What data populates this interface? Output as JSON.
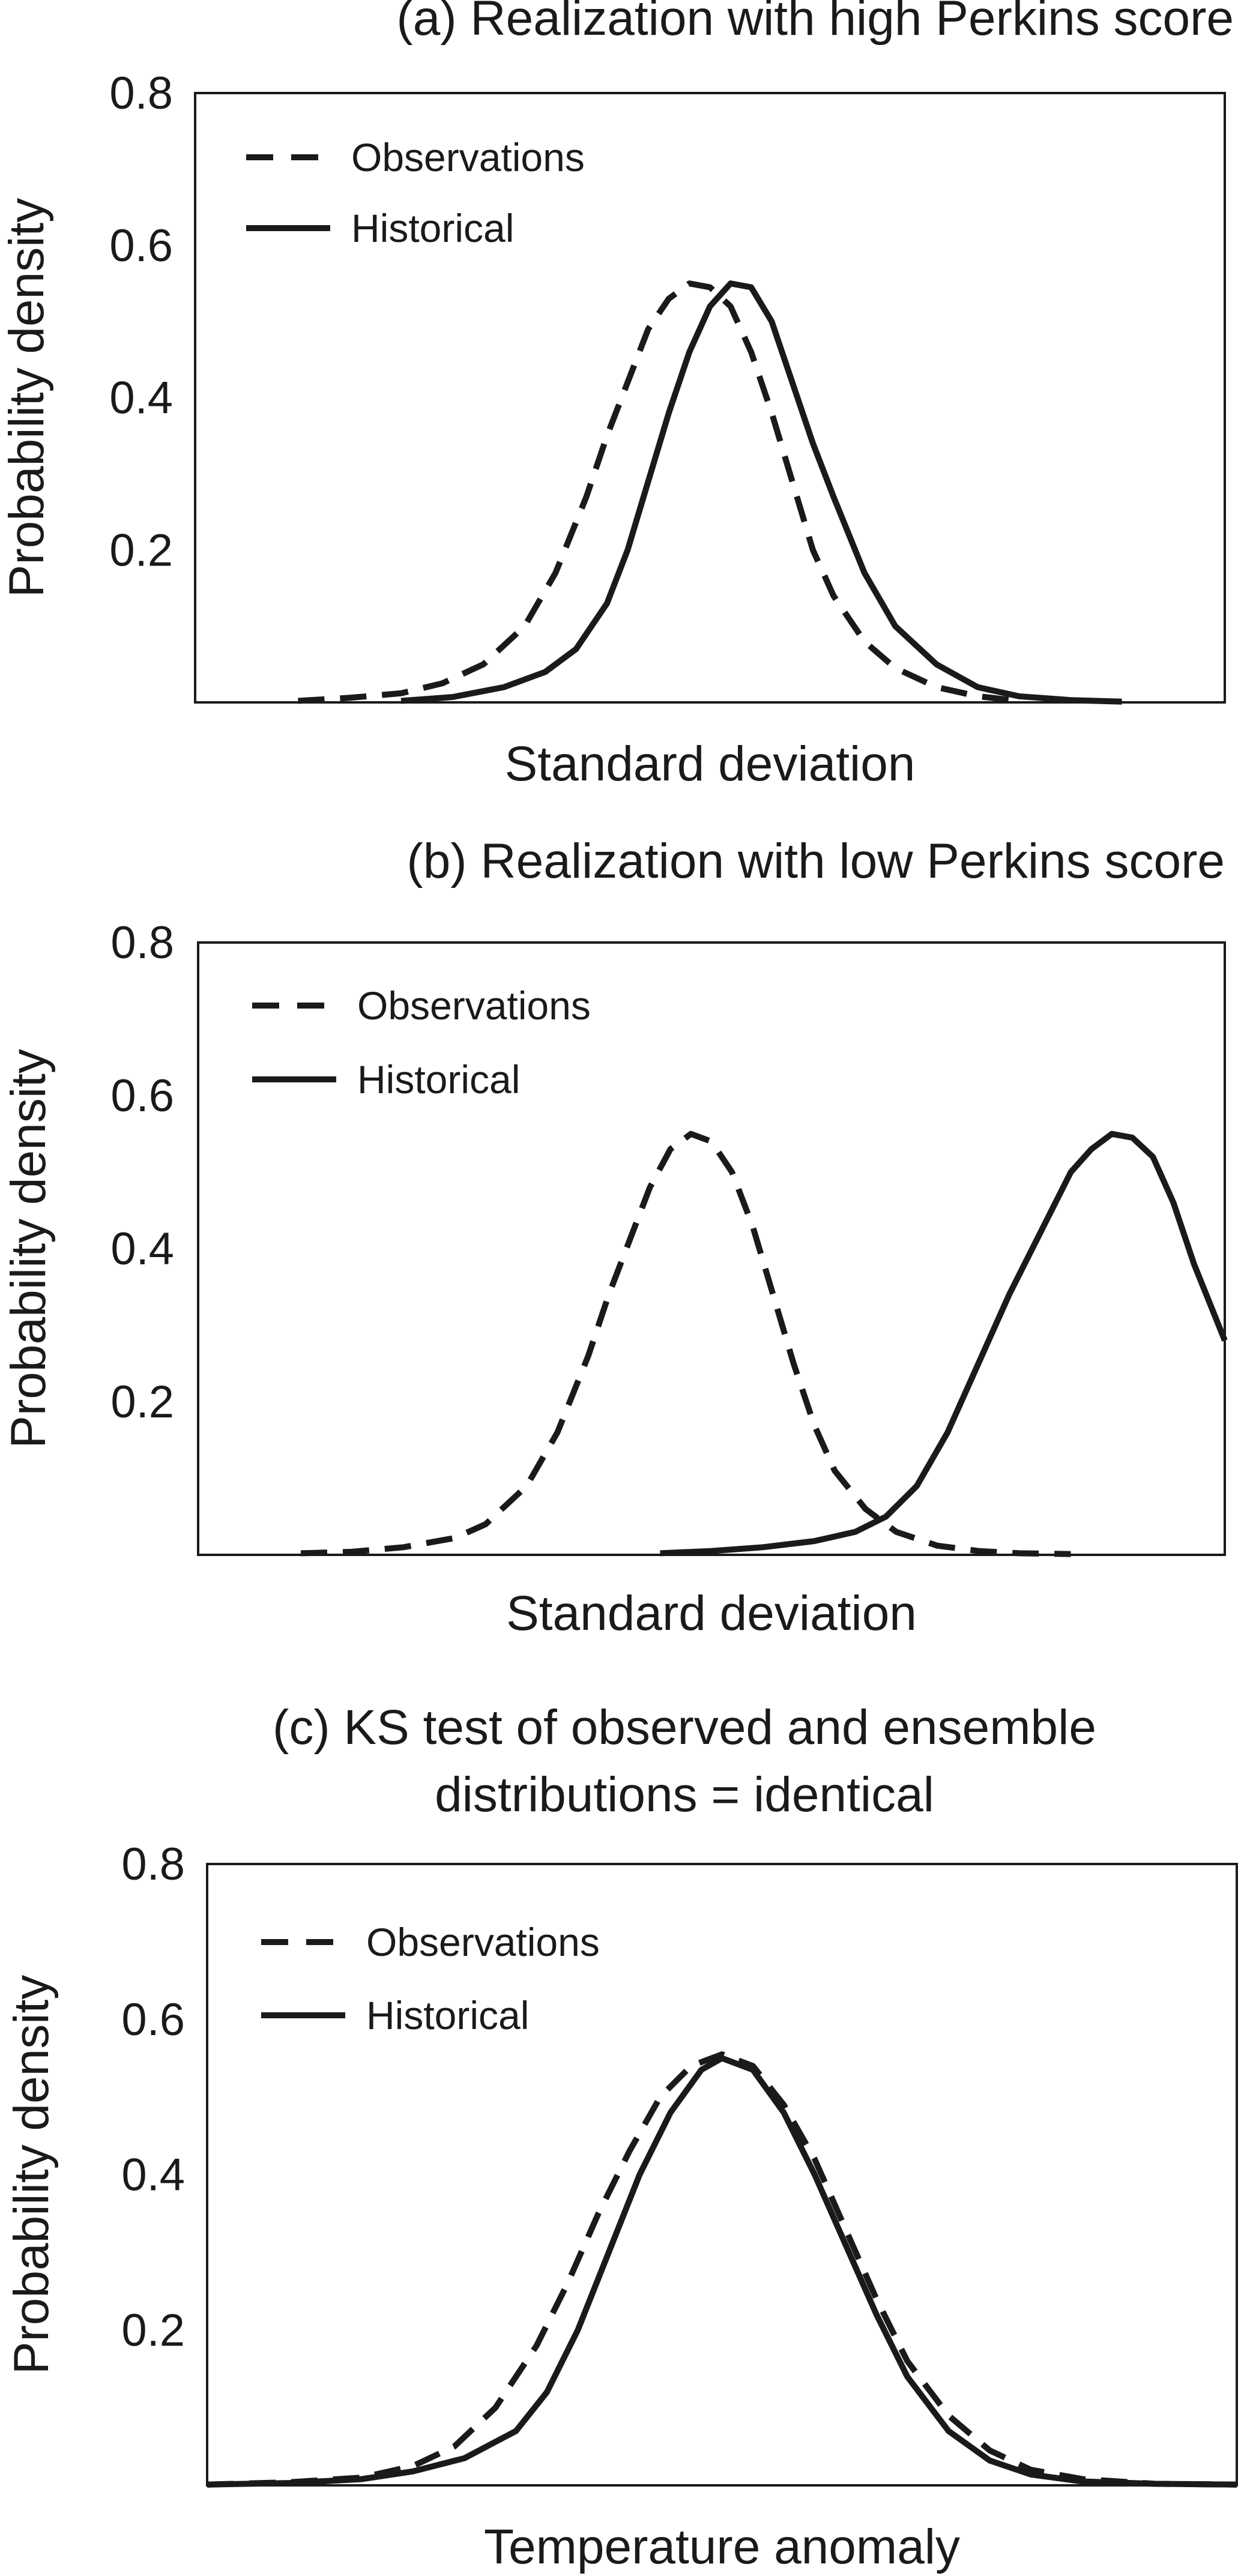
{
  "chart_data": [
    {
      "type": "line",
      "title": "(a) Realization with high Perkins score",
      "xlabel": "Standard deviation",
      "ylabel": "Probability density",
      "ylim": [
        0,
        0.8
      ],
      "xlim": [
        -5,
        5
      ],
      "yticks": [
        "0.2",
        "0.4",
        "0.6",
        "0.8"
      ],
      "grid": false,
      "legend_position": "top-left",
      "legend": [
        "Observations",
        "Historical"
      ],
      "series": [
        {
          "name": "Observations",
          "style": "dashed",
          "x": [
            -4,
            -3.5,
            -3,
            -2.6,
            -2.2,
            -1.8,
            -1.5,
            -1.2,
            -1,
            -0.8,
            -0.6,
            -0.4,
            -0.2,
            0,
            0.2,
            0.4,
            0.6,
            0.8,
            1,
            1.2,
            1.5,
            1.8,
            2.2,
            2.6,
            3
          ],
          "y": [
            0.002,
            0.006,
            0.012,
            0.025,
            0.05,
            0.1,
            0.17,
            0.27,
            0.35,
            0.42,
            0.49,
            0.53,
            0.55,
            0.545,
            0.52,
            0.46,
            0.38,
            0.29,
            0.2,
            0.14,
            0.08,
            0.045,
            0.02,
            0.008,
            0.002
          ]
        },
        {
          "name": "Historical",
          "style": "solid",
          "x": [
            -3,
            -2.5,
            -2,
            -1.6,
            -1.3,
            -1,
            -0.8,
            -0.6,
            -0.4,
            -0.2,
            0,
            0.2,
            0.4,
            0.6,
            0.8,
            1,
            1.2,
            1.5,
            1.8,
            2.2,
            2.6,
            3,
            3.5,
            4
          ],
          "y": [
            0.002,
            0.007,
            0.02,
            0.04,
            0.07,
            0.13,
            0.2,
            0.29,
            0.38,
            0.46,
            0.52,
            0.55,
            0.545,
            0.5,
            0.42,
            0.34,
            0.27,
            0.17,
            0.1,
            0.05,
            0.02,
            0.008,
            0.003,
            0.001
          ]
        }
      ]
    },
    {
      "type": "line",
      "title": "(b) Realization with low Perkins score",
      "xlabel": "Standard deviation",
      "ylabel": "Probability density",
      "ylim": [
        0,
        0.8
      ],
      "xlim": [
        -5,
        5
      ],
      "yticks": [
        "0.2",
        "0.4",
        "0.6",
        "0.8"
      ],
      "grid": false,
      "legend_position": "top-left",
      "legend": [
        "Observations",
        "Historical"
      ],
      "series": [
        {
          "name": "Observations",
          "style": "dashed",
          "x": [
            -4,
            -3.5,
            -3,
            -2.5,
            -2.2,
            -1.8,
            -1.5,
            -1.2,
            -1,
            -0.8,
            -0.6,
            -0.4,
            -0.2,
            0,
            0.2,
            0.4,
            0.6,
            0.8,
            1,
            1.2,
            1.5,
            1.8,
            2.2,
            2.6,
            3,
            3.5
          ],
          "y": [
            0.002,
            0.004,
            0.01,
            0.022,
            0.04,
            0.09,
            0.16,
            0.26,
            0.34,
            0.41,
            0.48,
            0.53,
            0.55,
            0.54,
            0.5,
            0.43,
            0.34,
            0.25,
            0.17,
            0.11,
            0.06,
            0.03,
            0.012,
            0.005,
            0.002,
            0.001
          ]
        },
        {
          "name": "Historical",
          "style": "solid",
          "x": [
            -0.5,
            0,
            0.5,
            1,
            1.4,
            1.7,
            2,
            2.3,
            2.6,
            2.9,
            3.2,
            3.5,
            3.7,
            3.9,
            4.1,
            4.3,
            4.5,
            4.7,
            5
          ],
          "y": [
            0.002,
            0.005,
            0.01,
            0.018,
            0.03,
            0.05,
            0.09,
            0.16,
            0.25,
            0.34,
            0.42,
            0.5,
            0.53,
            0.55,
            0.545,
            0.52,
            0.46,
            0.38,
            0.28
          ]
        }
      ]
    },
    {
      "type": "line",
      "title": "(c) KS test of observed and ensemble distributions = identical",
      "title_lines": [
        "(c) KS test of observed and ensemble",
        "distributions = identical"
      ],
      "xlabel": "Temperature anomaly",
      "ylabel": "Probability density",
      "ylim": [
        0,
        0.8
      ],
      "xlim": [
        -5,
        5
      ],
      "yticks": [
        "0.2",
        "0.4",
        "0.6",
        "0.8"
      ],
      "grid": false,
      "legend_position": "top-left",
      "legend": [
        "Observations",
        "Historical"
      ],
      "series": [
        {
          "name": "Observations",
          "style": "dashed",
          "x": [
            -5,
            -4.2,
            -3.5,
            -3,
            -2.6,
            -2.2,
            -1.8,
            -1.5,
            -1.2,
            -0.9,
            -0.6,
            -0.3,
            0,
            0.3,
            0.6,
            0.9,
            1.2,
            1.5,
            1.8,
            2.2,
            2.6,
            3,
            3.5,
            4.2,
            5
          ],
          "y": [
            0.001,
            0.004,
            0.01,
            0.025,
            0.05,
            0.1,
            0.18,
            0.26,
            0.35,
            0.43,
            0.5,
            0.54,
            0.555,
            0.54,
            0.49,
            0.42,
            0.33,
            0.24,
            0.16,
            0.09,
            0.045,
            0.02,
            0.008,
            0.002,
            0.001
          ]
        },
        {
          "name": "Historical",
          "style": "solid",
          "x": [
            -5,
            -4.2,
            -3.5,
            -3,
            -2.5,
            -2,
            -1.7,
            -1.4,
            -1.1,
            -0.8,
            -0.5,
            -0.2,
            0,
            0.3,
            0.6,
            0.9,
            1.2,
            1.5,
            1.8,
            2.2,
            2.6,
            3,
            3.5,
            4.2,
            5
          ],
          "y": [
            0.001,
            0.003,
            0.008,
            0.018,
            0.035,
            0.07,
            0.12,
            0.2,
            0.3,
            0.4,
            0.48,
            0.535,
            0.55,
            0.535,
            0.48,
            0.4,
            0.31,
            0.22,
            0.14,
            0.07,
            0.032,
            0.014,
            0.005,
            0.002,
            0.001
          ]
        }
      ]
    }
  ]
}
